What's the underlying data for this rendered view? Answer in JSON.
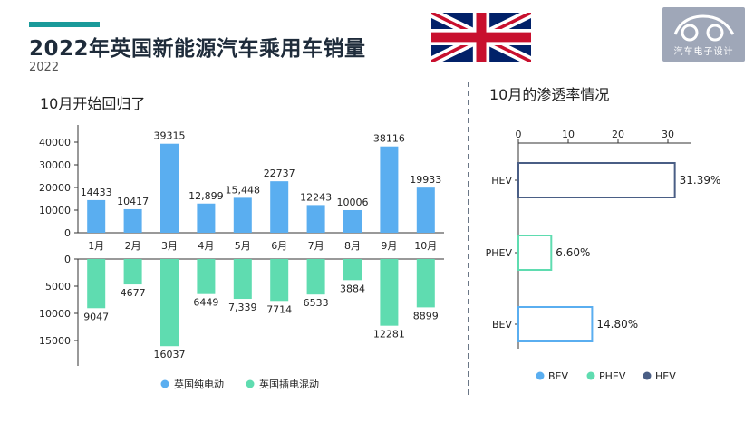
{
  "header": {
    "title": "2022年英国新能源汽车乘用车销量",
    "subtitle": "2022",
    "logo_text": "汽车电子设计"
  },
  "colors": {
    "accent": "#1a9a9a",
    "bev": "#5aaef0",
    "phev": "#5fdcb0",
    "hev": "#4a5e85"
  },
  "left_section_title": "10月开始回归了",
  "right_section_title": "10月的渗透率情况",
  "chart_data": [
    {
      "type": "bar",
      "categories": [
        "1月",
        "2月",
        "3月",
        "4月",
        "5月",
        "6月",
        "7月",
        "8月",
        "9月",
        "10月"
      ],
      "series": [
        {
          "name": "英国纯电动",
          "values": [
            14433,
            10417,
            39315,
            12899,
            15448,
            22737,
            12243,
            10006,
            38116,
            19933
          ],
          "labels": [
            "14433",
            "10417",
            "39315",
            "12,899",
            "15,448",
            "22737",
            "12243",
            "10006",
            "38116",
            "19933"
          ]
        },
        {
          "name": "英国插电混动",
          "values": [
            9047,
            4677,
            16037,
            6449,
            7339,
            7714,
            6533,
            3884,
            12281,
            8899
          ],
          "labels": [
            "9047",
            "4677",
            "16037",
            "6449",
            "7,339",
            "7714",
            "6533",
            "3884",
            "12281",
            "8899"
          ]
        }
      ],
      "upper_axis": {
        "ticks": [
          "0",
          "10000",
          "20000",
          "30000",
          "40000"
        ],
        "ylim": [
          0,
          40000
        ]
      },
      "lower_axis": {
        "ticks": [
          "0",
          "5000",
          "10000",
          "15000"
        ],
        "ylim": [
          0,
          16037
        ]
      },
      "legend": [
        "英国纯电动",
        "英国插电混动"
      ],
      "legend_position": "bottom"
    },
    {
      "type": "bar",
      "orientation": "horizontal",
      "categories": [
        "HEV",
        "PHEV",
        "BEV"
      ],
      "values": [
        31.39,
        6.6,
        14.8
      ],
      "value_labels": [
        "31.39%",
        "6.60%",
        "14.80%"
      ],
      "x_ticks": [
        "0",
        "10",
        "20",
        "30"
      ],
      "xlim": [
        0,
        34
      ],
      "legend": [
        "BEV",
        "PHEV",
        "HEV"
      ],
      "legend_position": "bottom"
    }
  ]
}
